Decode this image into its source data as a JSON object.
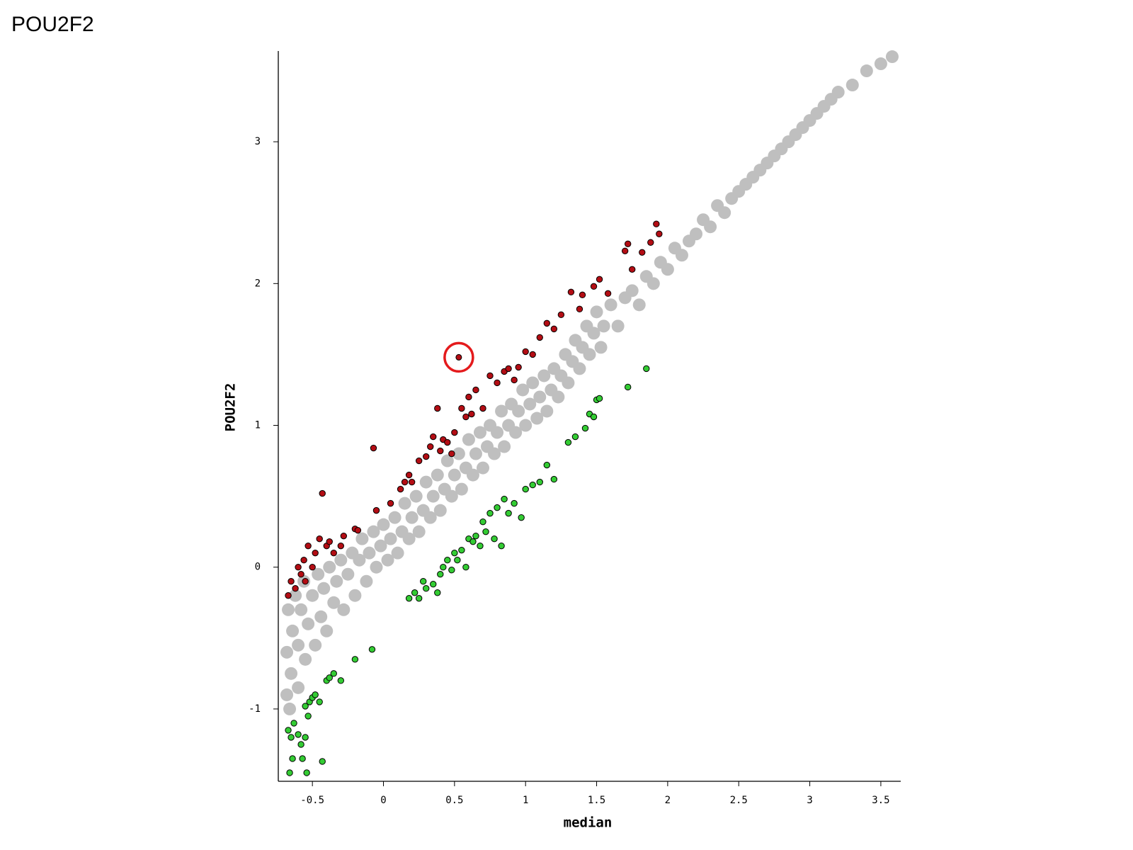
{
  "chart_data": {
    "type": "scatter",
    "title": "POU2F2",
    "xlabel": "median",
    "ylabel": "POU2F2",
    "xlim": [
      -0.74,
      3.64
    ],
    "ylim": [
      -1.51,
      3.64
    ],
    "xticks": [
      -0.5,
      0,
      0.5,
      1,
      1.5,
      2,
      2.5,
      3,
      3.5
    ],
    "yticks": [
      -1,
      0,
      1,
      2,
      3
    ],
    "series": [
      {
        "color": "#bfbfbf",
        "x": [
          -0.68,
          -0.68,
          -0.67,
          -0.66,
          -0.65,
          -0.64,
          -0.62,
          -0.6,
          -0.6,
          -0.58,
          -0.56,
          -0.55,
          -0.53,
          -0.5,
          -0.48,
          -0.46,
          -0.44,
          -0.42,
          -0.4,
          -0.38,
          -0.35,
          -0.33,
          -0.3,
          -0.28,
          -0.25,
          -0.22,
          -0.2,
          -0.17,
          -0.15,
          -0.12,
          -0.1,
          -0.07,
          -0.05,
          -0.02,
          0,
          0.03,
          0.05,
          0.08,
          0.1,
          0.13,
          0.15,
          0.18,
          0.2,
          0.23,
          0.25,
          0.28,
          0.3,
          0.33,
          0.35,
          0.38,
          0.4,
          0.43,
          0.45,
          0.48,
          0.5,
          0.53,
          0.55,
          0.58,
          0.6,
          0.63,
          0.65,
          0.68,
          0.7,
          0.73,
          0.75,
          0.78,
          0.8,
          0.83,
          0.85,
          0.88,
          0.9,
          0.93,
          0.95,
          0.98,
          1,
          1.03,
          1.05,
          1.08,
          1.1,
          1.13,
          1.15,
          1.18,
          1.2,
          1.23,
          1.25,
          1.28,
          1.3,
          1.33,
          1.35,
          1.38,
          1.4,
          1.43,
          1.45,
          1.48,
          1.5,
          1.53,
          1.55,
          1.6,
          1.65,
          1.7,
          1.75,
          1.8,
          1.85,
          1.9,
          1.95,
          2,
          2.05,
          2.1,
          2.15,
          2.2,
          2.25,
          2.3,
          2.35,
          2.4,
          2.45,
          2.5,
          2.55,
          2.6,
          2.65,
          2.7,
          2.75,
          2.8,
          2.85,
          2.9,
          2.95,
          3,
          3.05,
          3.1,
          3.15,
          3.2,
          3.3,
          3.4,
          3.5,
          3.58
        ],
        "values": [
          -0.9,
          -0.6,
          -0.3,
          -1.0,
          -0.75,
          -0.45,
          -0.2,
          -0.85,
          -0.55,
          -0.3,
          -0.1,
          -0.65,
          -0.4,
          -0.2,
          -0.55,
          -0.05,
          -0.35,
          -0.15,
          -0.45,
          0,
          -0.25,
          -0.1,
          0.05,
          -0.3,
          -0.05,
          0.1,
          -0.2,
          0.05,
          0.2,
          -0.1,
          0.1,
          0.25,
          0,
          0.15,
          0.3,
          0.05,
          0.2,
          0.35,
          0.1,
          0.25,
          0.45,
          0.2,
          0.35,
          0.5,
          0.25,
          0.4,
          0.6,
          0.35,
          0.5,
          0.65,
          0.4,
          0.55,
          0.75,
          0.5,
          0.65,
          0.8,
          0.55,
          0.7,
          0.9,
          0.65,
          0.8,
          0.95,
          0.7,
          0.85,
          1.0,
          0.8,
          0.95,
          1.1,
          0.85,
          1.0,
          1.15,
          0.95,
          1.1,
          1.25,
          1.0,
          1.15,
          1.3,
          1.05,
          1.2,
          1.35,
          1.1,
          1.25,
          1.4,
          1.2,
          1.35,
          1.5,
          1.3,
          1.45,
          1.6,
          1.4,
          1.55,
          1.7,
          1.5,
          1.65,
          1.8,
          1.55,
          1.7,
          1.85,
          1.7,
          1.9,
          1.95,
          1.85,
          2.05,
          2.0,
          2.15,
          2.1,
          2.25,
          2.2,
          2.3,
          2.35,
          2.45,
          2.4,
          2.55,
          2.5,
          2.6,
          2.65,
          2.7,
          2.75,
          2.8,
          2.85,
          2.9,
          2.95,
          3.0,
          3.05,
          3.1,
          3.15,
          3.2,
          3.25,
          3.3,
          3.35,
          3.4,
          3.5,
          3.55,
          3.6
        ]
      },
      {
        "color": "#b30d14",
        "x": [
          -0.67,
          -0.65,
          -0.62,
          -0.6,
          -0.58,
          -0.56,
          -0.55,
          -0.53,
          -0.5,
          -0.48,
          -0.45,
          -0.43,
          -0.4,
          -0.38,
          -0.35,
          -0.3,
          -0.28,
          -0.2,
          -0.18,
          -0.07,
          -0.05,
          0.05,
          0.12,
          0.15,
          0.18,
          0.2,
          0.25,
          0.3,
          0.33,
          0.35,
          0.38,
          0.4,
          0.42,
          0.45,
          0.48,
          0.5,
          0.55,
          0.58,
          0.6,
          0.62,
          0.65,
          0.7,
          0.75,
          0.8,
          0.85,
          0.88,
          0.92,
          0.95,
          1.0,
          1.05,
          1.1,
          1.15,
          1.2,
          1.25,
          1.32,
          1.38,
          1.4,
          1.48,
          1.52,
          1.58,
          1.7,
          1.72,
          1.75,
          1.82,
          1.88,
          1.92,
          1.94
        ],
        "values": [
          -0.2,
          -0.1,
          -0.15,
          0.0,
          -0.05,
          0.05,
          -0.1,
          0.15,
          0.0,
          0.1,
          0.2,
          0.52,
          0.15,
          0.18,
          0.1,
          0.15,
          0.22,
          0.27,
          0.26,
          0.84,
          0.4,
          0.45,
          0.55,
          0.6,
          0.65,
          0.6,
          0.75,
          0.78,
          0.85,
          0.92,
          1.12,
          0.82,
          0.9,
          0.88,
          0.8,
          0.95,
          1.12,
          1.06,
          1.2,
          1.08,
          1.25,
          1.12,
          1.35,
          1.3,
          1.38,
          1.4,
          1.32,
          1.41,
          1.52,
          1.5,
          1.62,
          1.72,
          1.68,
          1.78,
          1.94,
          1.82,
          1.92,
          1.98,
          2.03,
          1.93,
          2.23,
          2.28,
          2.1,
          2.22,
          2.29,
          2.42,
          2.35
        ]
      },
      {
        "color": "#33cc33",
        "x": [
          -0.67,
          -0.66,
          -0.65,
          -0.64,
          -0.63,
          -0.6,
          -0.58,
          -0.57,
          -0.55,
          -0.54,
          -0.53,
          -0.55,
          -0.52,
          -0.5,
          -0.48,
          -0.45,
          -0.43,
          -0.4,
          -0.38,
          -0.35,
          -0.3,
          -0.2,
          -0.08,
          0.18,
          0.22,
          0.25,
          0.28,
          0.3,
          0.35,
          0.38,
          0.4,
          0.42,
          0.45,
          0.48,
          0.5,
          0.52,
          0.55,
          0.58,
          0.6,
          0.63,
          0.65,
          0.68,
          0.7,
          0.72,
          0.75,
          0.78,
          0.8,
          0.83,
          0.85,
          0.88,
          0.92,
          0.97,
          1.0,
          1.05,
          1.1,
          1.15,
          1.2,
          1.3,
          1.35,
          1.42,
          1.45,
          1.48,
          1.5,
          1.52,
          1.72,
          1.85
        ],
        "values": [
          -1.15,
          -1.45,
          -1.2,
          -1.35,
          -1.1,
          -1.18,
          -1.25,
          -1.35,
          -1.2,
          -1.45,
          -1.05,
          -0.98,
          -0.95,
          -0.92,
          -0.9,
          -0.95,
          -1.37,
          -0.8,
          -0.78,
          -0.75,
          -0.8,
          -0.65,
          -0.58,
          -0.22,
          -0.18,
          -0.22,
          -0.1,
          -0.15,
          -0.12,
          -0.18,
          -0.05,
          0.0,
          0.05,
          -0.02,
          0.1,
          0.05,
          0.12,
          0.0,
          0.2,
          0.18,
          0.22,
          0.15,
          0.32,
          0.25,
          0.38,
          0.2,
          0.42,
          0.15,
          0.48,
          0.38,
          0.45,
          0.35,
          0.55,
          0.58,
          0.6,
          0.72,
          0.62,
          0.88,
          0.92,
          0.98,
          1.08,
          1.06,
          1.18,
          1.19,
          1.27,
          1.4
        ]
      }
    ],
    "highlight": {
      "x": 0.53,
      "y": 1.48,
      "color": "#e41a1c"
    }
  }
}
